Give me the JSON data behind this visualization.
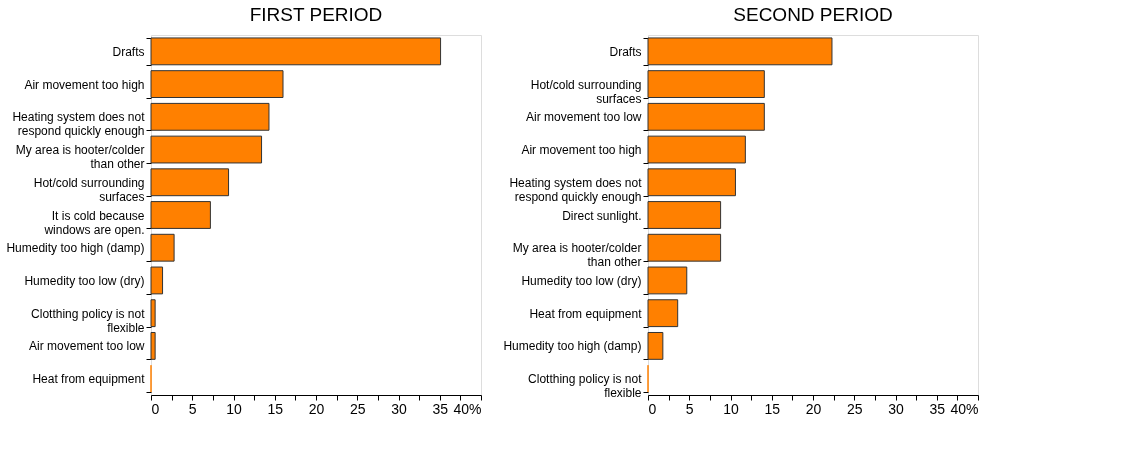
{
  "chart_data": [
    {
      "type": "bar",
      "orientation": "horizontal",
      "title": "FIRST PERIOD",
      "color": "#ff8000",
      "grid": false,
      "xlim": [
        0,
        40
      ],
      "xticks": [
        0,
        {
          "value": 2.5,
          "label": null
        },
        5,
        {
          "value": 7.5,
          "label": null
        },
        10,
        {
          "value": 12.5,
          "label": null
        },
        15,
        {
          "value": 17.5,
          "label": null
        },
        20,
        {
          "value": 22.5,
          "label": null
        },
        25,
        {
          "value": 27.5,
          "label": null
        },
        30,
        {
          "value": 32.5,
          "label": null
        },
        35,
        {
          "value": 37.5,
          "label": null
        },
        {
          "value": 40,
          "label": "40%"
        }
      ],
      "categories": [
        "Drafts",
        "Air movement too high",
        "Heating system does not respond quickly enough",
        "My area is hooter/colder than other",
        "Hot/cold surrounding surfaces",
        "It is cold because windows are open.",
        "Humedity too high (damp)",
        "Humedity too low (dry)",
        "Clotthing policy is not flexible",
        "Air movement too low",
        "Heat from equipment"
      ],
      "values": [
        35.1,
        16.0,
        14.3,
        13.4,
        9.4,
        7.2,
        2.8,
        1.4,
        0.5,
        0.5,
        0
      ]
    },
    {
      "type": "bar",
      "orientation": "horizontal",
      "title": "SECOND PERIOD",
      "color": "#ff8000",
      "grid": false,
      "xlim": [
        0,
        40
      ],
      "xticks": [
        0,
        {
          "value": 2.5,
          "label": null
        },
        5,
        {
          "value": 7.5,
          "label": null
        },
        10,
        {
          "value": 12.5,
          "label": null
        },
        15,
        {
          "value": 17.5,
          "label": null
        },
        20,
        {
          "value": 22.5,
          "label": null
        },
        25,
        {
          "value": 27.5,
          "label": null
        },
        30,
        {
          "value": 32.5,
          "label": null
        },
        35,
        {
          "value": 37.5,
          "label": null
        },
        {
          "value": 40,
          "label": "40%"
        }
      ],
      "categories": [
        "Drafts",
        "Hot/cold surrounding surfaces",
        "Air movement too low",
        "Air movement too high",
        "Heating system does not respond quickly enough",
        "Direct sunlight.",
        "My area is hooter/colder than other",
        "Humedity too low (dry)",
        "Heat from equipment",
        "Humedity too high (damp)",
        "Clotthing policy is not flexible"
      ],
      "values": [
        22.3,
        14.1,
        14.1,
        11.8,
        10.6,
        8.8,
        8.8,
        4.7,
        3.6,
        1.8,
        0
      ]
    }
  ]
}
